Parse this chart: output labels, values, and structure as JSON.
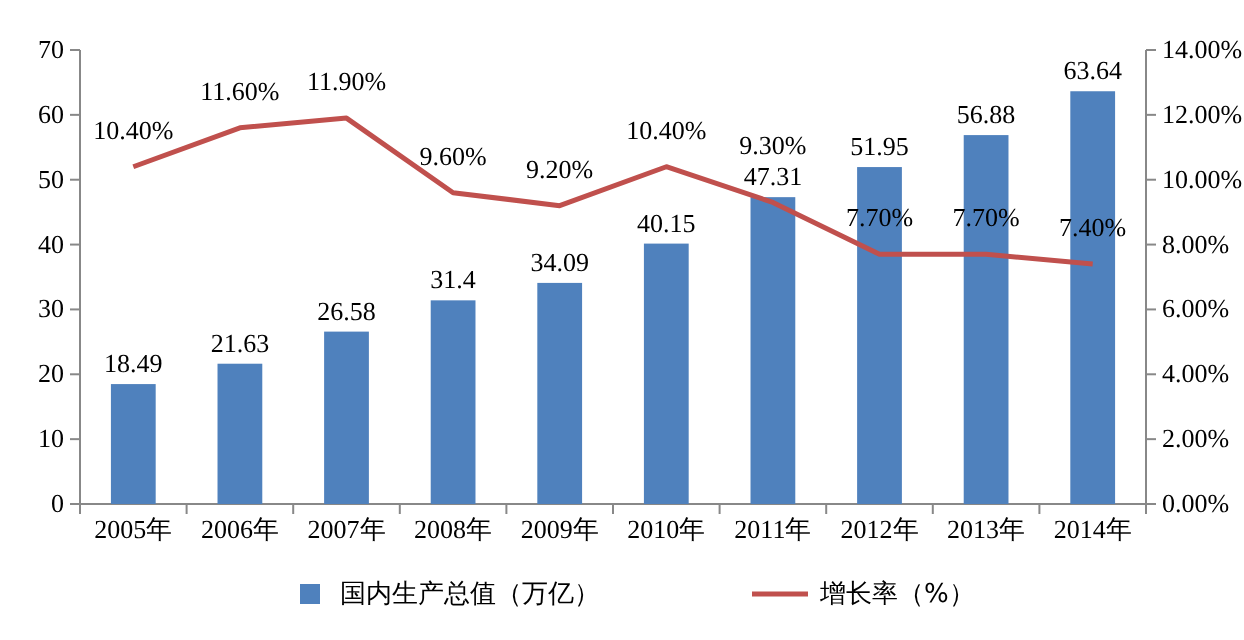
{
  "chart_data": {
    "type": "bar",
    "categories": [
      "2005年",
      "2006年",
      "2007年",
      "2008年",
      "2009年",
      "2010年",
      "2011年",
      "2012年",
      "2013年",
      "2014年"
    ],
    "series": [
      {
        "name": "国内生产总值（万亿）",
        "color": "#4f81bd",
        "values": [
          18.49,
          21.63,
          26.58,
          31.4,
          34.09,
          40.15,
          47.31,
          51.95,
          56.88,
          63.64
        ],
        "value_labels": [
          "18.49",
          "21.63",
          "26.58",
          "31.4",
          "34.09",
          "40.15",
          "47.31",
          "51.95",
          "56.88",
          "63.64"
        ]
      },
      {
        "name": "增长率（%）",
        "type": "line",
        "axis": "y2",
        "color": "#c0504d",
        "values": [
          10.4,
          11.6,
          11.9,
          9.6,
          9.2,
          10.4,
          9.3,
          7.7,
          7.7,
          7.4
        ],
        "value_labels": [
          "10.40%",
          "11.60%",
          "11.90%",
          "9.60%",
          "9.20%",
          "10.40%",
          "9.30%",
          "7.70%",
          "7.70%",
          "7.40%"
        ]
      }
    ],
    "ylim": [
      0,
      70
    ],
    "yticks": [
      0,
      10,
      20,
      30,
      40,
      50,
      60,
      70
    ],
    "y2lim": [
      0,
      14
    ],
    "y2ticks": [
      {
        "value": 0,
        "label": "0.00%"
      },
      {
        "value": 2,
        "label": "2.00%"
      },
      {
        "value": 4,
        "label": "4.00%"
      },
      {
        "value": 6,
        "label": "6.00%"
      },
      {
        "value": 8,
        "label": "8.00%"
      },
      {
        "value": 10,
        "label": "10.00%"
      },
      {
        "value": 12,
        "label": "12.00%"
      },
      {
        "value": 14,
        "label": "14.00%"
      }
    ],
    "legend": "bottom"
  }
}
